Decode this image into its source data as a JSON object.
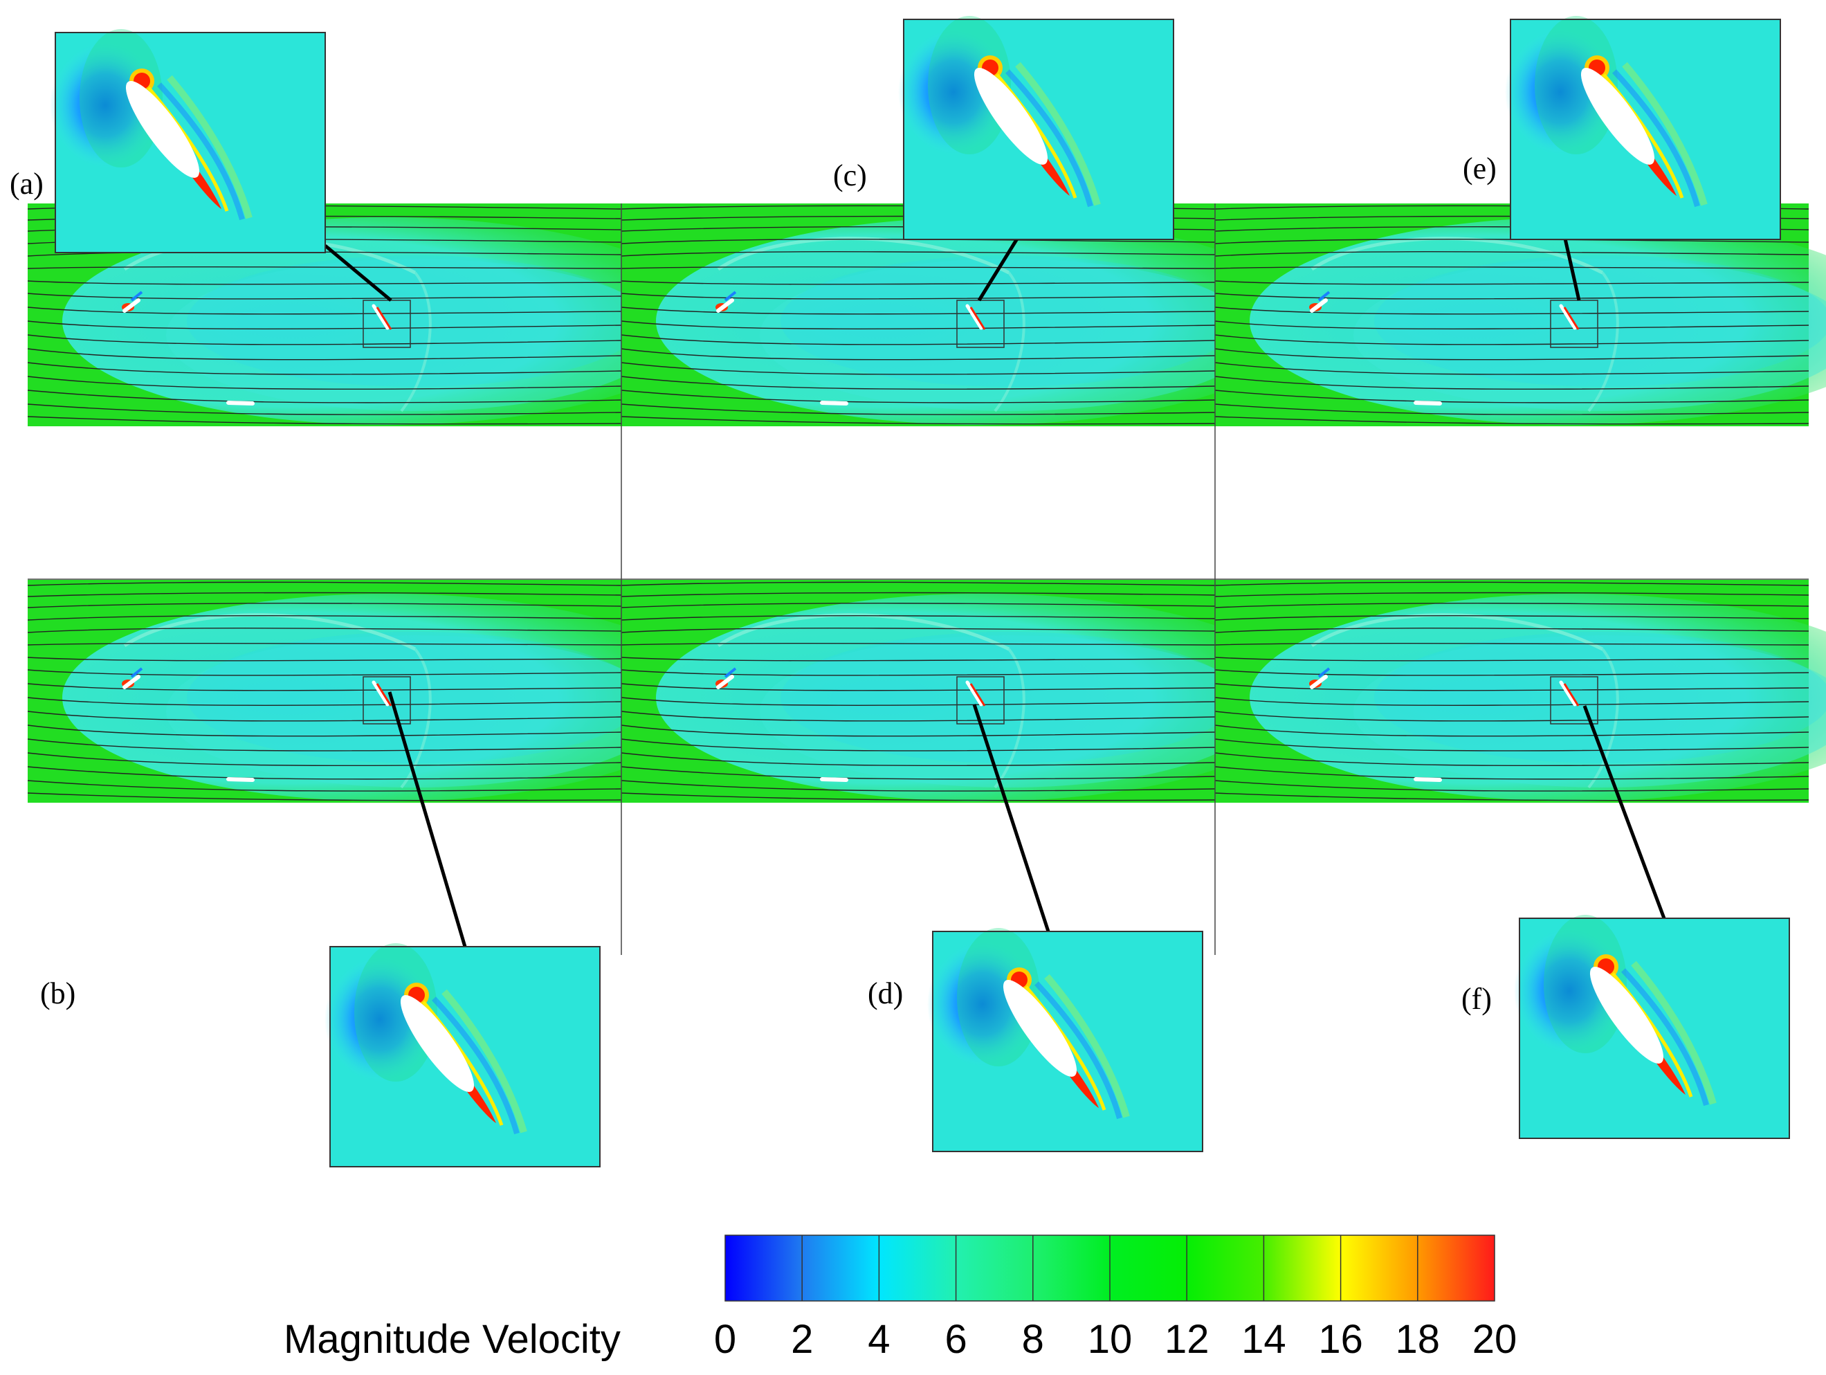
{
  "panels": [
    {
      "label": "(a)"
    },
    {
      "label": "(b)"
    },
    {
      "label": "(c)"
    },
    {
      "label": "(d)"
    },
    {
      "label": "(e)"
    },
    {
      "label": "(f)"
    }
  ],
  "colorbar": {
    "title": "Magnitude Velocity",
    "ticks": [
      "0",
      "2",
      "4",
      "6",
      "8",
      "10",
      "12",
      "14",
      "16",
      "18",
      "20"
    ],
    "min": 0,
    "max": 20,
    "colors": [
      "#0000ff",
      "#1f7bf0",
      "#00e6ff",
      "#22f0b0",
      "#1eef70",
      "#00ee22",
      "#05ee05",
      "#46ee00",
      "#ffff00",
      "#ff9900",
      "#ff1a1a"
    ]
  },
  "colors": {
    "freestream": "#22dd22",
    "wake": "#33ddcc",
    "deficit": "#0077ff",
    "jet": "#ff2200",
    "streamline": "#222222"
  }
}
